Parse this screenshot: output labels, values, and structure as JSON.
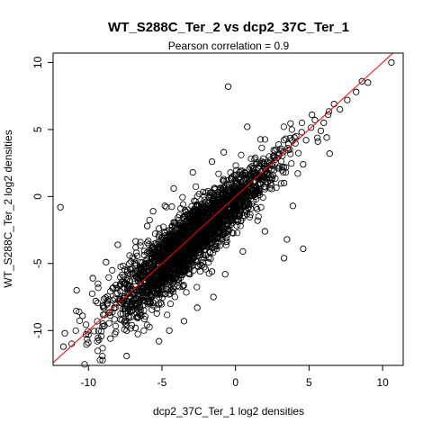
{
  "chart_data": {
    "type": "scatter",
    "title": "WT_S288C_Ter_2 vs dcp2_37C_Ter_1",
    "subtitle": "Pearson correlation =  0.9",
    "xlabel": "dcp2_37C_Ter_1 log2 densities",
    "ylabel": "WT_S288C_Ter_2 log2 densities",
    "xlim": [
      -12.4,
      11.4
    ],
    "ylim": [
      -12.6,
      10.7
    ],
    "xticks": [
      -10,
      -5,
      0,
      5,
      10
    ],
    "yticks": [
      -10,
      -5,
      0,
      5,
      10
    ],
    "xtick_labels": [
      "-10",
      "-5",
      "0",
      "5",
      "10"
    ],
    "ytick_labels": [
      "-10",
      "-5",
      "0",
      "5",
      "10"
    ],
    "grid": false,
    "reference_line": {
      "slope": 1,
      "intercept": 0,
      "color": "#ff0000"
    },
    "marker": "open-circle",
    "point_color": "#000000",
    "series": [
      {
        "points": [
          [
            10.6,
            10.0
          ],
          [
            9.0,
            8.5
          ],
          [
            8.6,
            8.6
          ],
          [
            8.2,
            7.8
          ],
          [
            7.6,
            7.2
          ],
          [
            7.1,
            6.5
          ],
          [
            6.7,
            6.9
          ],
          [
            6.3,
            6.1
          ],
          [
            6.0,
            5.5
          ],
          [
            5.8,
            4.9
          ],
          [
            5.4,
            5.7
          ],
          [
            5.2,
            6.1
          ],
          [
            4.8,
            4.2
          ],
          [
            4.5,
            4.8
          ],
          [
            4.0,
            4.4
          ],
          [
            3.6,
            3.9
          ],
          [
            3.1,
            3.4
          ],
          [
            2.6,
            2.9
          ],
          [
            2.1,
            2.3
          ],
          [
            1.6,
            1.7
          ],
          [
            1.0,
            1.2
          ],
          [
            0.5,
            0.7
          ],
          [
            0.3,
            -1.2
          ],
          [
            1.5,
            -1.8
          ],
          [
            2.0,
            -2.6
          ],
          [
            3.3,
            1.0
          ],
          [
            3.9,
            -0.7
          ],
          [
            4.6,
            2.4
          ],
          [
            3.5,
            -3.2
          ],
          [
            4.6,
            -3.9
          ],
          [
            3.3,
            -4.6
          ],
          [
            5.6,
            4.1
          ],
          [
            6.4,
            3.2
          ],
          [
            6.2,
            4.4
          ],
          [
            -0.5,
            8.2
          ],
          [
            -11.9,
            -0.8
          ],
          [
            -11.7,
            -11.2
          ],
          [
            -11.6,
            -10.2
          ],
          [
            -7.4,
            -11.9
          ],
          [
            -9.5,
            -7.8
          ],
          [
            -10.4,
            -8.9
          ],
          [
            -8.5,
            -10.6
          ],
          [
            -2.6,
            -8.3
          ],
          [
            -1.5,
            -7.5
          ],
          [
            -3.5,
            -9.3
          ],
          [
            -1.6,
            -5.6
          ],
          [
            -0.7,
            -5.8
          ],
          [
            0.5,
            -4.1
          ],
          [
            -6.0,
            -2.2
          ],
          [
            -5.6,
            -1.1
          ],
          [
            -4.8,
            -0.7
          ],
          [
            -2.9,
            1.8
          ],
          [
            -1.6,
            2.6
          ],
          [
            -0.8,
            3.3
          ],
          [
            0.8,
            5.2
          ],
          [
            -4.2,
            0.6
          ],
          [
            -7.6,
            -6.5
          ],
          [
            -8.8,
            -4.9
          ],
          [
            -9.7,
            -6.1
          ],
          [
            -5.2,
            -10.8
          ],
          [
            -6.8,
            -9.8
          ],
          [
            -4.5,
            -10.0
          ],
          [
            -10.8,
            -7.0
          ],
          [
            -8.0,
            -3.6
          ]
        ]
      }
    ]
  }
}
